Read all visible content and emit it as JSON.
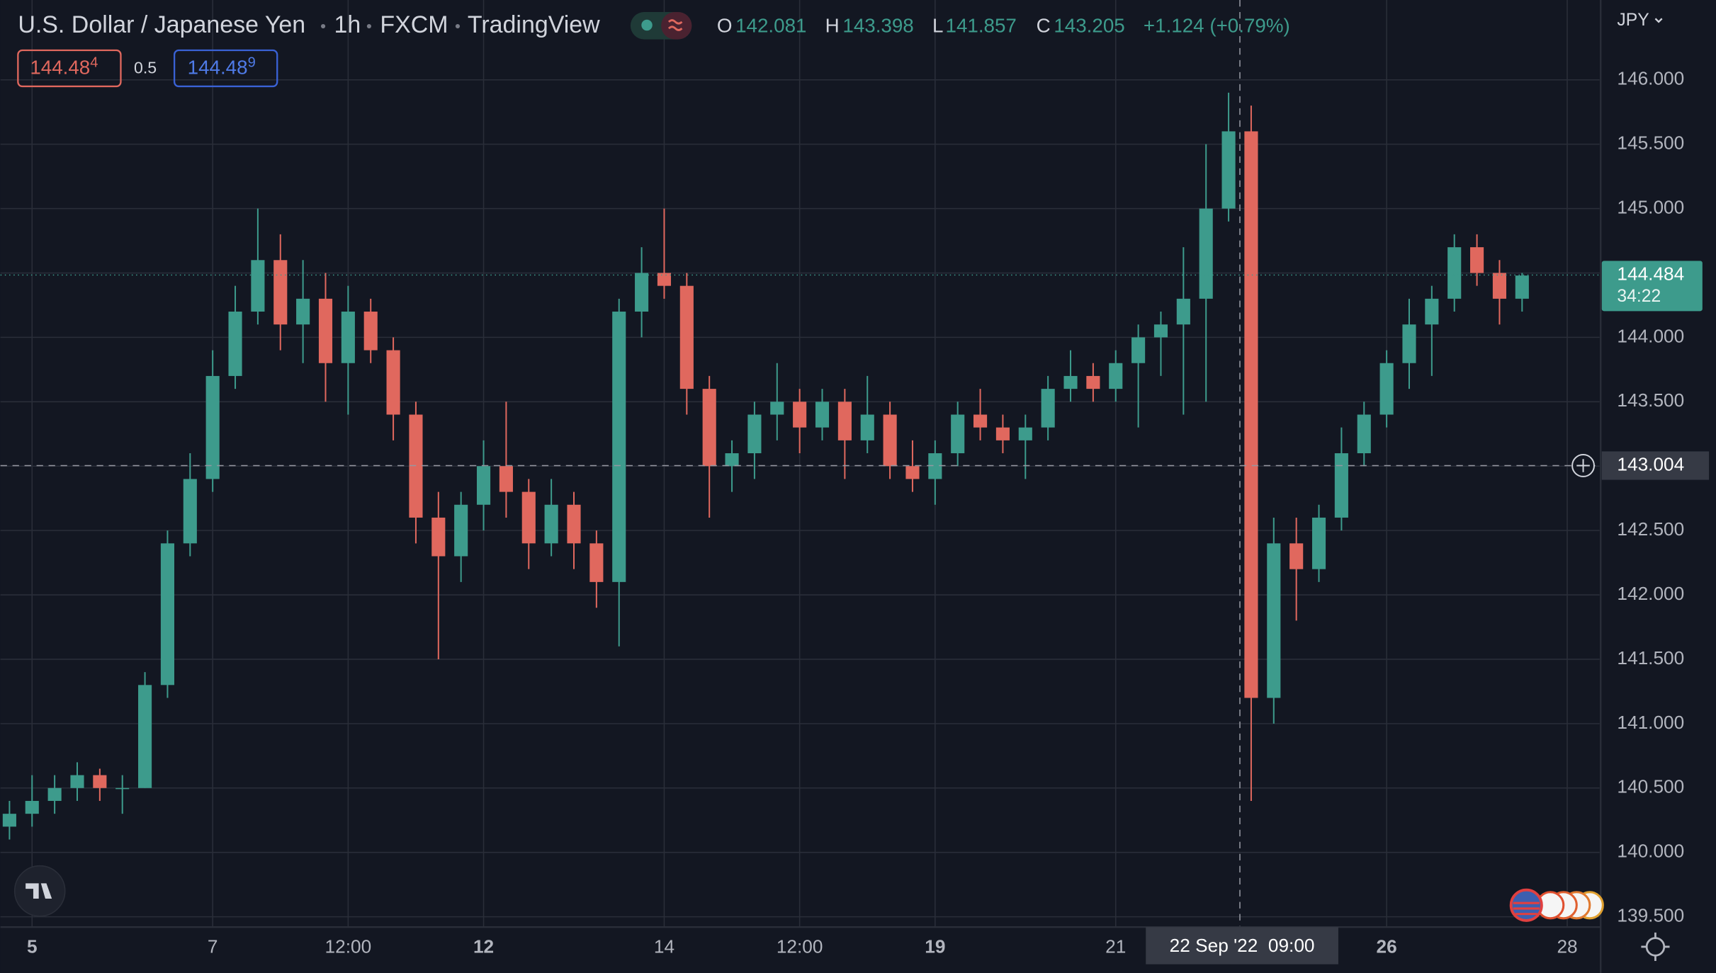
{
  "header": {
    "symbol": "U.S. Dollar / Japanese Yen",
    "interval": "1h",
    "exchange": "FXCM",
    "source": "TradingView"
  },
  "legend": {
    "o_label": "O",
    "open": "142.081",
    "h_label": "H",
    "high": "143.398",
    "l_label": "L",
    "low": "141.857",
    "c_label": "C",
    "close": "143.205",
    "change": "+1.124 (+0.79%)"
  },
  "trade": {
    "sell": "144.48",
    "sell_pip": "4",
    "spread": "0.5",
    "buy": "144.48",
    "buy_pip": "9"
  },
  "currency": "JPY",
  "chart_data": {
    "type": "candlestick",
    "x": [
      -6,
      0,
      6,
      12,
      18,
      24,
      30,
      36,
      42,
      48,
      54,
      60,
      66,
      72,
      78,
      84,
      90,
      96,
      102,
      108,
      114,
      120,
      126,
      132,
      138,
      144,
      150,
      156,
      162,
      168,
      174,
      180,
      186,
      192,
      198,
      204,
      210,
      216,
      222,
      228,
      234,
      240,
      246,
      252,
      258,
      264,
      270,
      276,
      282,
      288,
      294,
      300,
      306,
      312,
      318,
      324,
      330,
      336,
      342,
      348,
      354,
      360,
      366,
      372,
      378,
      384,
      390,
      396
    ],
    "open": [
      140.2,
      140.3,
      140.4,
      140.5,
      140.6,
      140.5,
      140.5,
      141.3,
      142.4,
      142.9,
      143.7,
      144.2,
      144.6,
      144.1,
      144.3,
      143.8,
      144.2,
      143.9,
      143.4,
      142.6,
      142.3,
      142.7,
      143.0,
      142.8,
      142.4,
      142.7,
      142.4,
      142.1,
      144.2,
      144.5,
      144.4,
      143.6,
      143.0,
      143.1,
      143.4,
      143.5,
      143.3,
      143.5,
      143.2,
      143.4,
      143.0,
      142.9,
      143.1,
      143.4,
      143.3,
      143.2,
      143.3,
      143.6,
      143.7,
      143.6,
      143.8,
      144.0,
      144.1,
      144.3,
      145.0,
      145.6,
      141.2,
      142.4,
      142.2,
      142.6,
      143.1,
      143.4,
      143.8,
      144.1,
      144.3,
      144.7,
      144.5,
      144.3
    ],
    "high": [
      140.4,
      140.6,
      140.6,
      140.7,
      140.65,
      140.6,
      141.4,
      142.5,
      143.1,
      143.9,
      144.4,
      145.0,
      144.8,
      144.6,
      144.5,
      144.4,
      144.3,
      144.0,
      143.5,
      142.8,
      142.8,
      143.2,
      143.5,
      142.9,
      142.9,
      142.8,
      142.5,
      144.3,
      144.7,
      145.0,
      144.5,
      143.7,
      143.2,
      143.5,
      143.8,
      143.6,
      143.6,
      143.6,
      143.7,
      143.5,
      143.2,
      143.2,
      143.5,
      143.6,
      143.4,
      143.4,
      143.7,
      143.9,
      143.8,
      143.9,
      144.1,
      144.2,
      144.7,
      145.5,
      145.9,
      145.8,
      142.6,
      142.6,
      142.7,
      143.3,
      143.5,
      143.9,
      144.3,
      144.4,
      144.8,
      144.8,
      144.6,
      144.5
    ],
    "low": [
      140.1,
      140.2,
      140.3,
      140.4,
      140.4,
      140.3,
      140.5,
      141.2,
      142.3,
      142.8,
      143.6,
      144.1,
      143.9,
      143.8,
      143.5,
      143.4,
      143.8,
      143.2,
      142.4,
      141.5,
      142.1,
      142.5,
      142.6,
      142.2,
      142.3,
      142.2,
      141.9,
      141.6,
      144.0,
      144.3,
      143.4,
      142.6,
      142.8,
      142.9,
      143.2,
      143.1,
      143.2,
      142.9,
      143.1,
      142.9,
      142.8,
      142.7,
      143.0,
      143.2,
      143.1,
      142.9,
      143.2,
      143.5,
      143.5,
      143.5,
      143.3,
      143.7,
      143.4,
      143.5,
      144.9,
      140.4,
      141.0,
      141.8,
      142.1,
      142.5,
      143.0,
      143.3,
      143.6,
      143.7,
      144.2,
      144.4,
      144.1,
      144.2
    ],
    "close": [
      140.3,
      140.4,
      140.5,
      140.6,
      140.5,
      140.5,
      141.3,
      142.4,
      142.9,
      143.7,
      144.2,
      144.6,
      144.1,
      144.3,
      143.8,
      144.2,
      143.9,
      143.4,
      142.6,
      142.3,
      142.7,
      143.0,
      142.8,
      142.4,
      142.7,
      142.4,
      142.1,
      144.2,
      144.5,
      144.4,
      143.6,
      143.0,
      143.1,
      143.4,
      143.5,
      143.3,
      143.5,
      143.2,
      143.4,
      143.0,
      142.9,
      143.1,
      143.4,
      143.3,
      143.2,
      143.3,
      143.6,
      143.7,
      143.6,
      143.8,
      144.0,
      144.1,
      144.3,
      145.0,
      145.6,
      141.2,
      142.4,
      142.2,
      142.6,
      143.1,
      143.4,
      143.8,
      144.1,
      144.3,
      144.7,
      144.5,
      144.3,
      144.48
    ],
    "xlim": [
      -8.4,
      416.6
    ],
    "xticks": [
      {
        "value": 0,
        "label": "5"
      },
      {
        "value": 48,
        "label": "7"
      },
      {
        "value": 84,
        "label": "12:00"
      },
      {
        "value": 120,
        "label": "12"
      },
      {
        "value": 168,
        "label": "14"
      },
      {
        "value": 204,
        "label": "12:00"
      },
      {
        "value": 240,
        "label": "19"
      },
      {
        "value": 288,
        "label": "21"
      },
      {
        "value": 360,
        "label": "26"
      },
      {
        "value": 408,
        "label": "28"
      }
    ],
    "ylim": [
      139.42,
      146.62
    ],
    "yticks": [
      {
        "value": 139.5,
        "label": "139.500"
      },
      {
        "value": 140,
        "label": "140.000"
      },
      {
        "value": 140.5,
        "label": "140.500"
      },
      {
        "value": 141,
        "label": "141.000"
      },
      {
        "value": 141.5,
        "label": "141.500"
      },
      {
        "value": 142,
        "label": "142.000"
      },
      {
        "value": 142.5,
        "label": "142.500"
      },
      {
        "value": 143,
        "label": "143.000"
      },
      {
        "value": 143.5,
        "label": "143.500"
      },
      {
        "value": 144,
        "label": "144.000"
      },
      {
        "value": 144.5,
        "label": "144.500"
      },
      {
        "value": 145,
        "label": "145.000"
      },
      {
        "value": 145.5,
        "label": "145.500"
      },
      {
        "value": 146,
        "label": "146.000"
      }
    ],
    "grid": true,
    "up_color": "#3d9b8c",
    "down_color": "#e0685e",
    "last_price": {
      "value": 144.484,
      "label": "144.484"
    },
    "countdown": "34:22",
    "crosshair_x": {
      "value": 321,
      "label": "22 Sep '22  09:00"
    },
    "crosshair_y": {
      "value": 143.004,
      "label": "143.004"
    }
  }
}
